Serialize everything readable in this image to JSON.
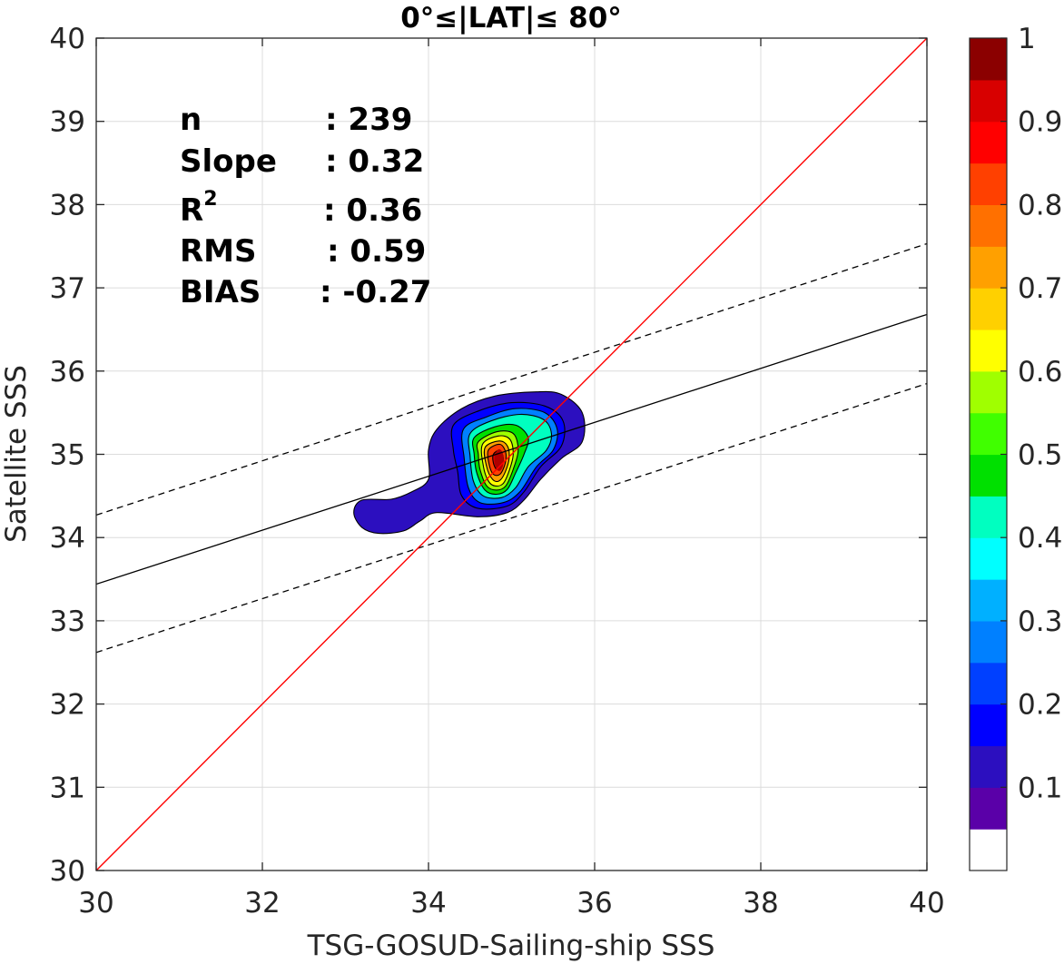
{
  "chart_data": {
    "type": "contour",
    "title": "0°≤|LAT|≤ 80°",
    "xlabel": "TSG-GOSUD-Sailing-ship SSS",
    "ylabel": "Satellite SSS",
    "xlim": [
      30,
      40
    ],
    "ylim": [
      30,
      40
    ],
    "x_ticks": [
      "30",
      "32",
      "34",
      "36",
      "38",
      "40"
    ],
    "y_ticks": [
      "30",
      "31",
      "32",
      "33",
      "34",
      "35",
      "36",
      "37",
      "38",
      "39",
      "40"
    ],
    "grid": true,
    "stats": [
      {
        "label": "n",
        "value": ": 239"
      },
      {
        "label": "Slope",
        "value": ": 0.32"
      },
      {
        "label": "R",
        "sup": "2",
        "value": ": 0.36"
      },
      {
        "label": "RMS",
        "value": ": 0.59"
      },
      {
        "label": "BIAS",
        "value": ": -0.27"
      }
    ],
    "identity_line": {
      "x": [
        30,
        40
      ],
      "y": [
        30,
        40
      ],
      "color": "#ff0000"
    },
    "fit_line": {
      "x": [
        30,
        40
      ],
      "y": [
        33.44,
        36.68
      ],
      "color": "#000000"
    },
    "fit_upper": {
      "x": [
        30,
        40
      ],
      "y": [
        34.27,
        37.53
      ],
      "color": "#000000"
    },
    "fit_lower": {
      "x": [
        30,
        40
      ],
      "y": [
        32.62,
        35.85
      ],
      "color": "#000000"
    },
    "density_center": {
      "x": 34.85,
      "y": 34.93
    },
    "contour_levels": [
      {
        "level": 0.05,
        "color": "#2c0fbf",
        "points": [
          [
            33.2,
            34.45
          ],
          [
            33.55,
            34.46
          ],
          [
            33.8,
            34.55
          ],
          [
            34.0,
            34.7
          ],
          [
            34.0,
            35.05
          ],
          [
            34.1,
            35.3
          ],
          [
            34.4,
            35.55
          ],
          [
            34.8,
            35.7
          ],
          [
            35.3,
            35.75
          ],
          [
            35.6,
            35.72
          ],
          [
            35.85,
            35.5
          ],
          [
            35.85,
            35.15
          ],
          [
            35.6,
            34.95
          ],
          [
            35.35,
            34.7
          ],
          [
            35.15,
            34.45
          ],
          [
            34.95,
            34.3
          ],
          [
            34.6,
            34.25
          ],
          [
            34.1,
            34.3
          ],
          [
            33.9,
            34.2
          ],
          [
            33.7,
            34.08
          ],
          [
            33.4,
            34.05
          ],
          [
            33.2,
            34.12
          ],
          [
            33.1,
            34.3
          ]
        ]
      },
      {
        "level": 0.15,
        "color": "#0000ff",
        "points": [
          [
            34.3,
            35.35
          ],
          [
            34.6,
            35.52
          ],
          [
            35.0,
            35.62
          ],
          [
            35.4,
            35.58
          ],
          [
            35.62,
            35.4
          ],
          [
            35.6,
            35.1
          ],
          [
            35.35,
            34.85
          ],
          [
            35.15,
            34.55
          ],
          [
            34.95,
            34.38
          ],
          [
            34.6,
            34.35
          ],
          [
            34.4,
            34.5
          ],
          [
            34.35,
            34.8
          ],
          [
            34.3,
            35.05
          ]
        ]
      },
      {
        "level": 0.25,
        "color": "#0080ff",
        "points": [
          [
            34.42,
            35.3
          ],
          [
            34.7,
            35.45
          ],
          [
            35.05,
            35.55
          ],
          [
            35.4,
            35.5
          ],
          [
            35.55,
            35.3
          ],
          [
            35.5,
            35.05
          ],
          [
            35.3,
            34.85
          ],
          [
            35.1,
            34.55
          ],
          [
            34.9,
            34.42
          ],
          [
            34.62,
            34.42
          ],
          [
            34.48,
            34.6
          ],
          [
            34.43,
            34.95
          ]
        ]
      },
      {
        "level": 0.35,
        "color": "#00ffc0",
        "points": [
          [
            34.5,
            35.25
          ],
          [
            34.75,
            35.4
          ],
          [
            35.1,
            35.48
          ],
          [
            35.38,
            35.42
          ],
          [
            35.48,
            35.25
          ],
          [
            35.42,
            35.05
          ],
          [
            35.2,
            34.85
          ],
          [
            35.05,
            34.6
          ],
          [
            34.88,
            34.48
          ],
          [
            34.66,
            34.5
          ],
          [
            34.54,
            34.68
          ],
          [
            34.5,
            34.98
          ]
        ]
      },
      {
        "level": 0.45,
        "color": "#00e000",
        "points": [
          [
            34.55,
            35.2
          ],
          [
            34.8,
            35.33
          ],
          [
            35.05,
            35.35
          ],
          [
            35.2,
            35.2
          ],
          [
            35.15,
            35.0
          ],
          [
            35.05,
            34.78
          ],
          [
            34.95,
            34.58
          ],
          [
            34.82,
            34.52
          ],
          [
            34.68,
            34.57
          ],
          [
            34.58,
            34.78
          ],
          [
            34.55,
            35.0
          ]
        ]
      },
      {
        "level": 0.55,
        "color": "#a0ff00",
        "points": [
          [
            34.6,
            35.15
          ],
          [
            34.82,
            35.27
          ],
          [
            35.02,
            35.25
          ],
          [
            35.08,
            35.05
          ],
          [
            35.02,
            34.82
          ],
          [
            34.93,
            34.62
          ],
          [
            34.82,
            34.57
          ],
          [
            34.7,
            34.62
          ],
          [
            34.62,
            34.82
          ],
          [
            34.6,
            35.0
          ]
        ]
      },
      {
        "level": 0.65,
        "color": "#ffff00",
        "points": [
          [
            34.65,
            35.12
          ],
          [
            34.84,
            35.22
          ],
          [
            34.98,
            35.18
          ],
          [
            35.02,
            35.0
          ],
          [
            34.97,
            34.8
          ],
          [
            34.9,
            34.65
          ],
          [
            34.8,
            34.62
          ],
          [
            34.72,
            34.68
          ],
          [
            34.66,
            34.86
          ]
        ]
      },
      {
        "level": 0.75,
        "color": "#ffa000",
        "points": [
          [
            34.68,
            35.08
          ],
          [
            34.85,
            35.16
          ],
          [
            34.95,
            35.1
          ],
          [
            34.97,
            34.95
          ],
          [
            34.92,
            34.78
          ],
          [
            34.85,
            34.68
          ],
          [
            34.77,
            34.7
          ],
          [
            34.7,
            34.85
          ]
        ]
      },
      {
        "level": 0.85,
        "color": "#ff4000",
        "points": [
          [
            34.72,
            35.05
          ],
          [
            34.86,
            35.12
          ],
          [
            34.93,
            35.02
          ],
          [
            34.92,
            34.88
          ],
          [
            34.86,
            34.76
          ],
          [
            34.78,
            34.76
          ],
          [
            34.73,
            34.88
          ]
        ]
      },
      {
        "level": 0.92,
        "color": "#d80000",
        "points": [
          [
            34.78,
            35.0
          ],
          [
            34.86,
            35.05
          ],
          [
            34.9,
            34.96
          ],
          [
            34.88,
            34.86
          ],
          [
            34.82,
            34.82
          ],
          [
            34.78,
            34.9
          ]
        ]
      }
    ],
    "colorbar": {
      "tick_labels": [
        "1",
        "0.9",
        "0.8",
        "0.7",
        "0.6",
        "0.5",
        "0.4",
        "0.3",
        "0.2",
        "0.1"
      ],
      "tick_values": [
        1.0,
        0.9,
        0.8,
        0.7,
        0.6,
        0.5,
        0.4,
        0.3,
        0.2,
        0.1
      ],
      "colors": [
        "#ffffff",
        "#5a00a8",
        "#2c0fbf",
        "#0000ff",
        "#0040ff",
        "#0080ff",
        "#00b0ff",
        "#00ffff",
        "#00ffc0",
        "#00e000",
        "#40ff00",
        "#a0ff00",
        "#ffff00",
        "#ffd000",
        "#ffa000",
        "#ff7000",
        "#ff4000",
        "#ff0000",
        "#d80000",
        "#8b0000"
      ]
    }
  }
}
